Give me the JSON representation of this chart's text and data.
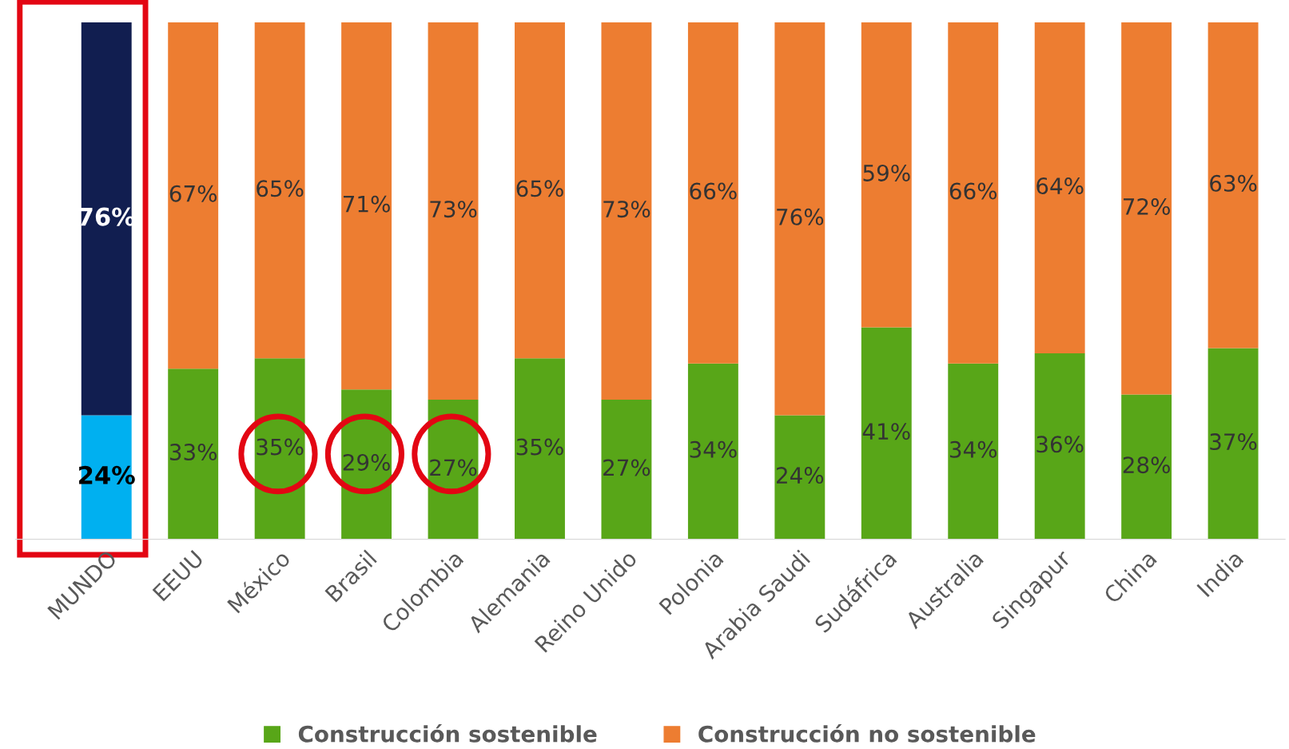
{
  "chart_data": {
    "type": "bar",
    "stacked": true,
    "legend": "bottom",
    "grid": false,
    "tick_labels": "x",
    "categories": [
      "MUNDO",
      "EEUU",
      "México",
      "Brasil",
      "Colombia",
      "Alemania",
      "Reino Unido",
      "Polonia",
      "Arabia Saudi",
      "Sudáfrica",
      "Australia",
      "Singapur",
      "China",
      "India"
    ],
    "series": [
      {
        "name": "Construcción sostenible",
        "color": "#58a618",
        "colors": [
          "#00b0f0",
          "#58a618",
          "#58a618",
          "#58a618",
          "#58a618",
          "#58a618",
          "#58a618",
          "#58a618",
          "#58a618",
          "#58a618",
          "#58a618",
          "#58a618",
          "#58a618",
          "#58a618"
        ],
        "values": [
          24,
          33,
          35,
          29,
          27,
          35,
          27,
          34,
          24,
          41,
          34,
          36,
          28,
          37
        ],
        "value_labels": [
          "24%",
          "33%",
          "35%",
          "29%",
          "27%",
          "35%",
          "27%",
          "34%",
          "24%",
          "41%",
          "34%",
          "36%",
          "28%",
          "37%"
        ]
      },
      {
        "name": "Construcción no sostenible",
        "color": "#ed7d31",
        "colors": [
          "#111e50",
          "#ed7d31",
          "#ed7d31",
          "#ed7d31",
          "#ed7d31",
          "#ed7d31",
          "#ed7d31",
          "#ed7d31",
          "#ed7d31",
          "#ed7d31",
          "#ed7d31",
          "#ed7d31",
          "#ed7d31",
          "#ed7d31"
        ],
        "values": [
          76,
          67,
          65,
          71,
          73,
          65,
          73,
          66,
          76,
          59,
          66,
          64,
          72,
          63
        ],
        "value_labels": [
          "76%",
          "67%",
          "65%",
          "71%",
          "73%",
          "65%",
          "73%",
          "66%",
          "76%",
          "59%",
          "66%",
          "64%",
          "72%",
          "63%"
        ]
      }
    ]
  }
}
